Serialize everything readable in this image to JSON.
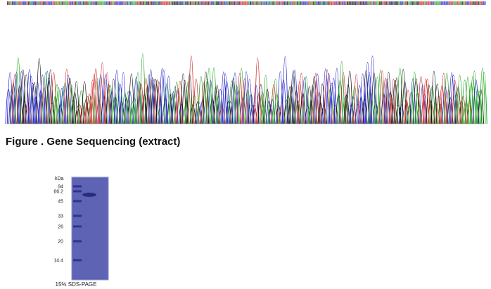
{
  "caption": "Figure . Gene Sequencing (extract)",
  "gel": {
    "unit": "kDa",
    "markers": [
      "94",
      "66.2",
      "45",
      "33",
      "26",
      "20",
      "14.4"
    ],
    "caption": "15% SDS-PAGE"
  }
}
